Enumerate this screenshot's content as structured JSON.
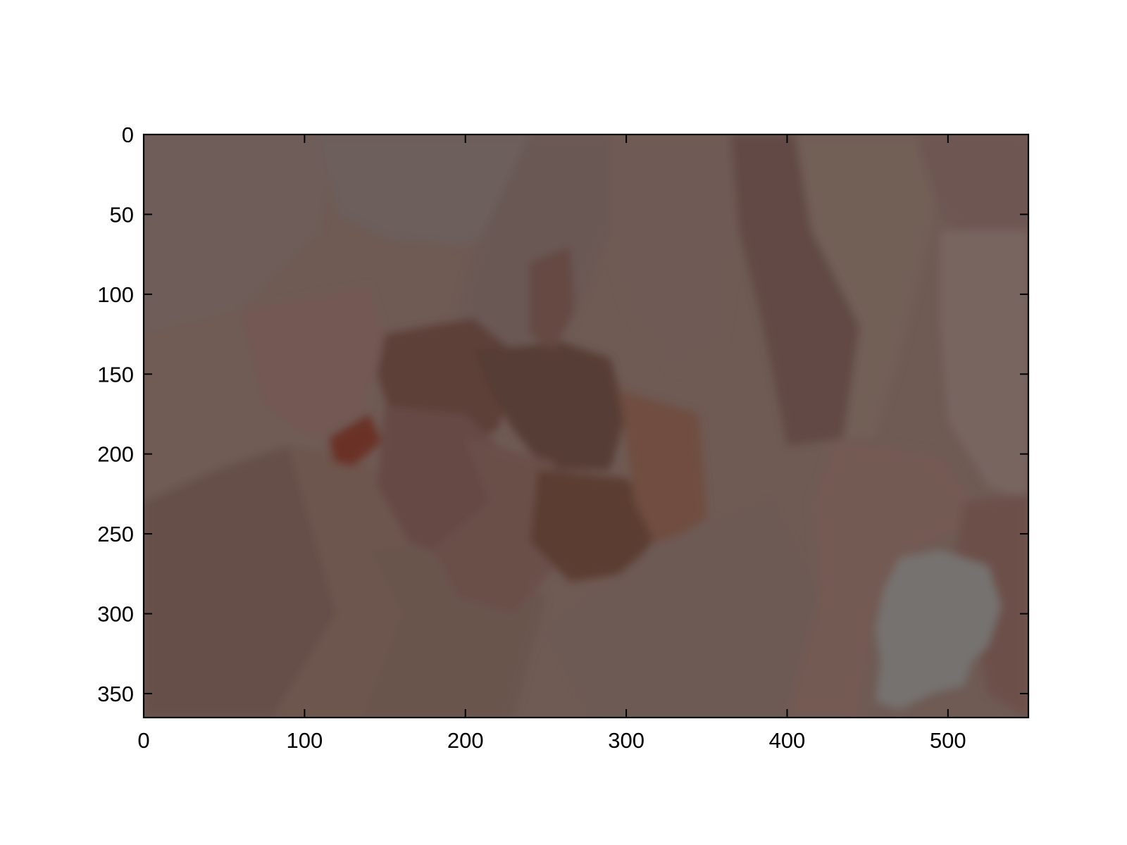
{
  "chart_data": {
    "type": "heatmap",
    "title": "",
    "xlabel": "",
    "ylabel": "",
    "xlim": [
      0,
      550
    ],
    "ylim": [
      365,
      0
    ],
    "y_axis_inverted": true,
    "grid": false,
    "xticks": [
      0,
      100,
      200,
      300,
      400,
      500
    ],
    "yticks": [
      0,
      50,
      100,
      150,
      200,
      250,
      300,
      350
    ],
    "xtick_labels": [
      "0",
      "100",
      "200",
      "300",
      "400",
      "500"
    ],
    "ytick_labels": [
      "0",
      "50",
      "100",
      "150",
      "200",
      "250",
      "300",
      "350"
    ],
    "image_description": "superpixel-segmented image with muted brown regions",
    "colors": {
      "base": "#6f5a54",
      "gray_blob": "#767270",
      "dark_center": "#563a34",
      "darkest_spot": "#6a3228"
    },
    "regions": [
      {
        "color": "#6e5d59",
        "points": [
          [
            0,
            0
          ],
          [
            120,
            0
          ],
          [
            110,
            60
          ],
          [
            60,
            110
          ],
          [
            0,
            125
          ]
        ]
      },
      {
        "color": "#6c5f5c",
        "points": [
          [
            110,
            0
          ],
          [
            250,
            0
          ],
          [
            245,
            40
          ],
          [
            200,
            70
          ],
          [
            150,
            65
          ],
          [
            120,
            50
          ]
        ]
      },
      {
        "color": "#6b5955",
        "points": [
          [
            240,
            0
          ],
          [
            300,
            0
          ],
          [
            290,
            60
          ],
          [
            265,
            120
          ],
          [
            215,
            140
          ],
          [
            195,
            110
          ],
          [
            205,
            75
          ]
        ]
      },
      {
        "color": "#705a54",
        "points": [
          [
            290,
            0
          ],
          [
            380,
            0
          ],
          [
            370,
            60
          ],
          [
            360,
            130
          ],
          [
            330,
            150
          ],
          [
            300,
            110
          ],
          [
            290,
            70
          ]
        ]
      },
      {
        "color": "#624a44",
        "points": [
          [
            365,
            0
          ],
          [
            410,
            0
          ],
          [
            420,
            60
          ],
          [
            445,
            120
          ],
          [
            435,
            190
          ],
          [
            400,
            195
          ],
          [
            385,
            120
          ],
          [
            370,
            60
          ]
        ]
      },
      {
        "color": "#725e57",
        "points": [
          [
            405,
            0
          ],
          [
            500,
            0
          ],
          [
            490,
            60
          ],
          [
            470,
            140
          ],
          [
            455,
            190
          ],
          [
            435,
            190
          ],
          [
            445,
            120
          ],
          [
            415,
            60
          ]
        ]
      },
      {
        "color": "#6e5752",
        "points": [
          [
            480,
            0
          ],
          [
            550,
            0
          ],
          [
            550,
            60
          ],
          [
            520,
            70
          ],
          [
            495,
            50
          ]
        ]
      },
      {
        "color": "#786560",
        "points": [
          [
            495,
            60
          ],
          [
            550,
            60
          ],
          [
            550,
            230
          ],
          [
            525,
            220
          ],
          [
            500,
            180
          ],
          [
            495,
            120
          ]
        ]
      },
      {
        "color": "#705c55",
        "points": [
          [
            0,
            125
          ],
          [
            60,
            110
          ],
          [
            105,
            120
          ],
          [
            115,
            200
          ],
          [
            75,
            195
          ],
          [
            45,
            210
          ],
          [
            0,
            230
          ]
        ]
      },
      {
        "color": "#664f48",
        "points": [
          [
            0,
            230
          ],
          [
            45,
            210
          ],
          [
            90,
            195
          ],
          [
            125,
            205
          ],
          [
            120,
            300
          ],
          [
            90,
            365
          ],
          [
            0,
            365
          ]
        ]
      },
      {
        "color": "#735853",
        "points": [
          [
            60,
            110
          ],
          [
            140,
            95
          ],
          [
            150,
            130
          ],
          [
            135,
            175
          ],
          [
            105,
            190
          ],
          [
            75,
            170
          ]
        ]
      },
      {
        "color": "#6d574e",
        "points": [
          [
            90,
            195
          ],
          [
            130,
            200
          ],
          [
            165,
            225
          ],
          [
            170,
            300
          ],
          [
            140,
            365
          ],
          [
            80,
            365
          ],
          [
            120,
            300
          ]
        ]
      },
      {
        "color": "#6a554e",
        "points": [
          [
            140,
            260
          ],
          [
            210,
            250
          ],
          [
            250,
            290
          ],
          [
            230,
            365
          ],
          [
            135,
            365
          ],
          [
            160,
            300
          ]
        ]
      },
      {
        "color": "#5d4139",
        "points": [
          [
            150,
            125
          ],
          [
            205,
            115
          ],
          [
            235,
            140
          ],
          [
            220,
            185
          ],
          [
            180,
            200
          ],
          [
            155,
            180
          ],
          [
            145,
            150
          ]
        ]
      },
      {
        "color": "#573c35",
        "points": [
          [
            205,
            135
          ],
          [
            260,
            130
          ],
          [
            290,
            140
          ],
          [
            300,
            175
          ],
          [
            290,
            210
          ],
          [
            250,
            210
          ],
          [
            230,
            185
          ],
          [
            215,
            160
          ]
        ]
      },
      {
        "color": "#654a42",
        "points": [
          [
            240,
            80
          ],
          [
            265,
            70
          ],
          [
            268,
            110
          ],
          [
            255,
            135
          ],
          [
            240,
            125
          ]
        ]
      },
      {
        "color": "#664a44",
        "points": [
          [
            150,
            170
          ],
          [
            200,
            175
          ],
          [
            230,
            205
          ],
          [
            220,
            240
          ],
          [
            190,
            265
          ],
          [
            165,
            255
          ],
          [
            145,
            220
          ]
        ]
      },
      {
        "color": "#6a4f49",
        "points": [
          [
            200,
            190
          ],
          [
            255,
            205
          ],
          [
            265,
            260
          ],
          [
            230,
            300
          ],
          [
            195,
            290
          ],
          [
            180,
            260
          ],
          [
            215,
            230
          ]
        ]
      },
      {
        "color": "#5c3c32",
        "points": [
          [
            245,
            210
          ],
          [
            300,
            215
          ],
          [
            325,
            245
          ],
          [
            300,
            275
          ],
          [
            265,
            280
          ],
          [
            240,
            255
          ]
        ]
      },
      {
        "color": "#704d3f",
        "points": [
          [
            295,
            160
          ],
          [
            345,
            175
          ],
          [
            350,
            240
          ],
          [
            320,
            260
          ],
          [
            305,
            230
          ],
          [
            300,
            190
          ]
        ]
      },
      {
        "color": "#6d5a54",
        "points": [
          [
            320,
            255
          ],
          [
            390,
            230
          ],
          [
            420,
            290
          ],
          [
            400,
            365
          ],
          [
            280,
            365
          ],
          [
            250,
            310
          ],
          [
            290,
            280
          ]
        ]
      },
      {
        "color": "#735a53",
        "points": [
          [
            430,
            190
          ],
          [
            495,
            200
          ],
          [
            525,
            240
          ],
          [
            480,
            260
          ],
          [
            455,
            300
          ],
          [
            445,
            365
          ],
          [
            400,
            365
          ],
          [
            420,
            290
          ],
          [
            415,
            230
          ]
        ]
      },
      {
        "color": "#6d4f49",
        "points": [
          [
            510,
            230
          ],
          [
            550,
            225
          ],
          [
            550,
            365
          ],
          [
            525,
            350
          ],
          [
            515,
            300
          ],
          [
            505,
            260
          ]
        ]
      },
      {
        "color": "#6a3228",
        "points": [
          [
            115,
            190
          ],
          [
            140,
            175
          ],
          [
            148,
            192
          ],
          [
            130,
            208
          ],
          [
            118,
            205
          ]
        ]
      },
      {
        "color": "#767270",
        "points": [
          [
            460,
            285
          ],
          [
            470,
            265
          ],
          [
            495,
            260
          ],
          [
            525,
            270
          ],
          [
            533,
            295
          ],
          [
            525,
            320
          ],
          [
            515,
            330
          ],
          [
            510,
            345
          ],
          [
            490,
            350
          ],
          [
            470,
            360
          ],
          [
            455,
            355
          ],
          [
            458,
            330
          ],
          [
            455,
            310
          ]
        ]
      }
    ]
  }
}
